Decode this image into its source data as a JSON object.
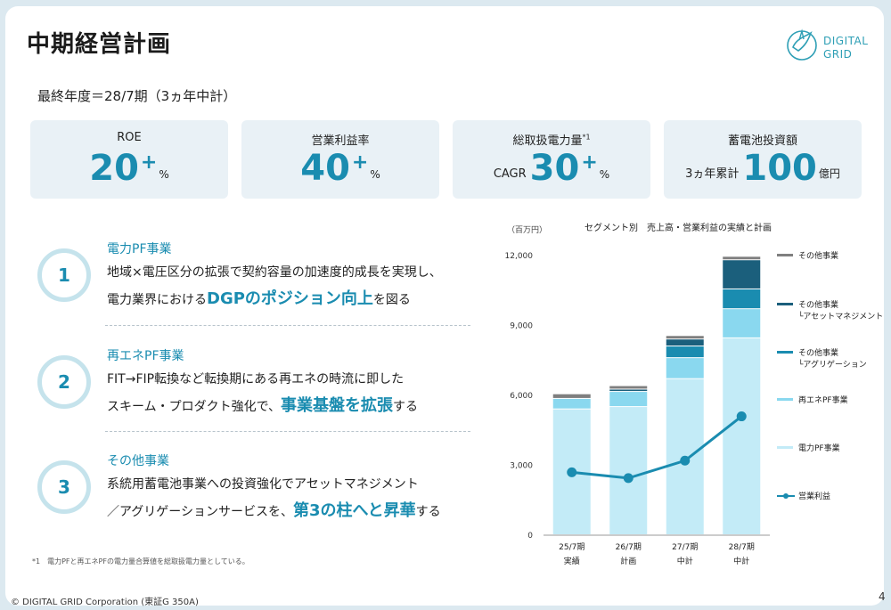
{
  "title": "中期経営計画",
  "logo": {
    "line1": "DIGITAL",
    "line2": "GRID"
  },
  "subtitle": "最終年度＝28/7期（3ヵ年中計）",
  "kpis": [
    {
      "label": "ROE",
      "label_sup": "",
      "prefix": "",
      "value": "20",
      "plus": "+",
      "unit": "%"
    },
    {
      "label": "営業利益率",
      "label_sup": "",
      "prefix": "",
      "value": "40",
      "plus": "+",
      "unit": "%"
    },
    {
      "label": "総取扱電力量",
      "label_sup": "*1",
      "prefix": "CAGR",
      "value": "30",
      "plus": "+",
      "unit": "%"
    },
    {
      "label": "蓄電池投資額",
      "label_sup": "",
      "prefix": "3ヵ年累計",
      "value": "100",
      "plus": "",
      "unit": "億円"
    }
  ],
  "items": [
    {
      "num": "1",
      "head": "電力PF事業",
      "l1": "地域×電圧区分の拡張で契約容量の加速度的成長を実現し、",
      "l2_pre": "電力業界における",
      "l2_emph": "DGPのポジション向上",
      "l2_post": "を図る"
    },
    {
      "num": "2",
      "head": "再エネPF事業",
      "l1": "FIT→FIP転換など転換期にある再エネの時流に即した",
      "l2_pre": "スキーム・プロダクト強化で、",
      "l2_emph": "事業基盤を拡張",
      "l2_post": "する"
    },
    {
      "num": "3",
      "head": "その他事業",
      "l1": "系統用蓄電池事業への投資強化でアセットマネジメント",
      "l2_pre": "／アグリゲーションサービスを、",
      "l2_emph": "第3の柱へと昇華",
      "l2_post": "する"
    }
  ],
  "footnote": "*1　電力PFと再エネPFの電力量合算値を総取扱電力量としている。",
  "copyright": "© DIGITAL GRID Corporation (東証G 350A)",
  "page": "4",
  "colors": {
    "accent": "#1a8cb0",
    "denryoku": "#c3ebf7",
    "saiene": "#8ad8ef",
    "aggregation": "#1a8cb0",
    "asset": "#1b5f7c",
    "other": "#7f7f7f",
    "line": "#1a8cb0"
  },
  "chart_data": {
    "type": "bar",
    "title": "セグメント別　売上高・営業利益の実績と計画",
    "unit_label": "（百万円）",
    "stacked": true,
    "categories": [
      "25/7期",
      "26/7期",
      "27/7期",
      "28/7期"
    ],
    "category_sub": [
      "実績",
      "計画",
      "中計",
      "中計"
    ],
    "ylim": [
      0,
      12000
    ],
    "yticks": [
      0,
      3000,
      6000,
      9000,
      12000
    ],
    "ytick_labels": [
      "0",
      "3,000",
      "6,000",
      "9,000",
      "12,000"
    ],
    "series": [
      {
        "name": "電力PF事業",
        "name2": "",
        "color": "#c3ebf7",
        "values": [
          5400,
          5500,
          6700,
          8450
        ]
      },
      {
        "name": "再エネPF事業",
        "name2": "",
        "color": "#8ad8ef",
        "values": [
          450,
          650,
          900,
          1250
        ]
      },
      {
        "name": "その他事業",
        "name2": "└アグリゲーション",
        "color": "#1a8cb0",
        "values": [
          0,
          0,
          500,
          850
        ]
      },
      {
        "name": "その他事業",
        "name2": "└アセットマネジメント",
        "color": "#1b5f7c",
        "values": [
          0,
          100,
          300,
          1250
        ]
      },
      {
        "name": "その他事業",
        "name2": "",
        "color": "#7f7f7f",
        "values": [
          200,
          150,
          150,
          150
        ]
      }
    ],
    "line_series": {
      "name": "営業利益",
      "color": "#1a8cb0",
      "values": [
        2700,
        2450,
        3200,
        5100
      ]
    }
  }
}
